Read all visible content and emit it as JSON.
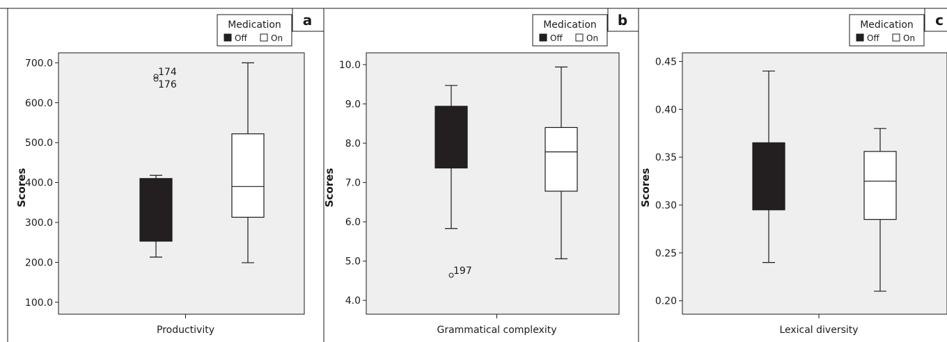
{
  "chart_data": [
    {
      "type": "box",
      "panel_label": "a",
      "ylabel": "Scores",
      "xlabel": "Productivity",
      "ylim": [
        70,
        725
      ],
      "yticks": [
        "100.0",
        "200.0",
        "300.0",
        "400.0",
        "500.0",
        "600.0",
        "700.0"
      ],
      "ytick_values": [
        100,
        200,
        300,
        400,
        500,
        600,
        700
      ],
      "legend": {
        "title": "Medication",
        "items": [
          "Off",
          "On"
        ],
        "position": "top-right"
      },
      "series": [
        {
          "group": "Off",
          "fill": "#231f20",
          "min": 213,
          "q1": 253,
          "median": 408,
          "q3": 410,
          "max": 418
        },
        {
          "group": "On",
          "fill": "#ffffff",
          "min": 199,
          "q1": 313,
          "median": 390,
          "q3": 522,
          "max": 700
        }
      ],
      "outliers": [
        {
          "group": "Off",
          "value": 666,
          "label": "174",
          "offset_hint": "upper"
        },
        {
          "group": "Off",
          "value": 659,
          "label": "176",
          "offset_hint": "lower"
        }
      ]
    },
    {
      "type": "box",
      "panel_label": "b",
      "ylabel": "Scores",
      "xlabel": "Grammatical complexity",
      "ylim": [
        3.65,
        10.3
      ],
      "yticks": [
        "4.0",
        "5.0",
        "6.0",
        "7.0",
        "8.0",
        "9.0",
        "10.0"
      ],
      "ytick_values": [
        4,
        5,
        6,
        7,
        8,
        9,
        10
      ],
      "legend": {
        "title": "Medication",
        "items": [
          "Off",
          "On"
        ],
        "position": "top-right"
      },
      "series": [
        {
          "group": "Off",
          "fill": "#231f20",
          "min": 5.83,
          "q1": 7.37,
          "median": 8.9,
          "q3": 8.94,
          "max": 9.47
        },
        {
          "group": "On",
          "fill": "#ffffff",
          "min": 5.06,
          "q1": 6.78,
          "median": 7.78,
          "q3": 8.4,
          "max": 9.94
        }
      ],
      "outliers": [
        {
          "group": "Off",
          "value": 4.64,
          "label": "197",
          "offset_hint": "upper"
        }
      ]
    },
    {
      "type": "box",
      "panel_label": "c",
      "ylabel": "Scores",
      "xlabel": "Lexical diversity",
      "ylim": [
        0.186,
        0.459
      ],
      "yticks": [
        "0.20",
        "0.25",
        "0.30",
        "0.35",
        "0.40",
        "0.45"
      ],
      "ytick_values": [
        0.2,
        0.25,
        0.3,
        0.35,
        0.4,
        0.45
      ],
      "legend": {
        "title": "Medication",
        "items": [
          "Off",
          "On"
        ],
        "position": "top-right"
      },
      "series": [
        {
          "group": "Off",
          "fill": "#231f20",
          "min": 0.24,
          "q1": 0.295,
          "median": 0.365,
          "q3": 0.365,
          "max": 0.44
        },
        {
          "group": "On",
          "fill": "#ffffff",
          "min": 0.21,
          "q1": 0.285,
          "median": 0.325,
          "q3": 0.356,
          "max": 0.38
        }
      ],
      "outliers": []
    }
  ],
  "colors": {
    "plot_background": "#efefef",
    "dark_box": "#231f20",
    "light_box": "#ffffff",
    "line": "#1a1a1a"
  }
}
